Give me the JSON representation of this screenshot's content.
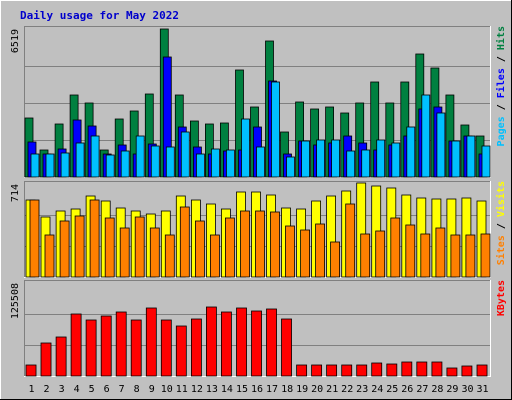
{
  "chart_data": {
    "type": "bar",
    "title": "Daily usage for May 2022",
    "categories": [
      "1",
      "2",
      "3",
      "4",
      "5",
      "6",
      "7",
      "8",
      "9",
      "10",
      "11",
      "12",
      "13",
      "14",
      "15",
      "16",
      "17",
      "18",
      "19",
      "20",
      "21",
      "22",
      "23",
      "24",
      "25",
      "26",
      "27",
      "28",
      "29",
      "30",
      "31"
    ],
    "weekend_days": [
      "1",
      "7",
      "8",
      "14",
      "15",
      "21",
      "22",
      "28",
      "29"
    ],
    "colors": {
      "background": "#c0c0c0",
      "hits": "#008040",
      "files": "#0000ff",
      "pages": "#00c0ff",
      "visits": "#ffff00",
      "sites": "#ff8000",
      "kbytes": "#ff0000",
      "title": "#0000cc",
      "weekday_label": "#000000",
      "weekend_label": "#008040",
      "grid": "#808080"
    },
    "panels": [
      {
        "id": "hits-files-pages",
        "max_label": "6519",
        "ymax": 6519,
        "side_label": [
          {
            "text": "Pages",
            "color": "#00c0ff"
          },
          {
            "text": " / ",
            "color": "#000000"
          },
          {
            "text": "Files",
            "color": "#0000ff"
          },
          {
            "text": " / ",
            "color": "#000000"
          },
          {
            "text": "Hits",
            "color": "#008040"
          }
        ],
        "series": [
          {
            "name": "Hits",
            "color": "#008040",
            "values": [
              2600,
              1200,
              2350,
              3600,
              3250,
              1200,
              2550,
              2900,
              3650,
              6500,
              3600,
              2450,
              2350,
              2400,
              4700,
              3100,
              6000,
              2000,
              3300,
              3000,
              3100,
              2800,
              3250,
              4200,
              3250,
              4200,
              5400,
              4800,
              3600,
              2300,
              1800
            ]
          },
          {
            "name": "Files",
            "color": "#0000ff",
            "values": [
              1550,
              1000,
              1250,
              2500,
              2250,
              1000,
              1400,
              1000,
              1450,
              5300,
              2200,
              1300,
              1000,
              1150,
              1200,
              2200,
              4250,
              1000,
              1600,
              1400,
              1500,
              1800,
              1500,
              1200,
              1400,
              1800,
              3000,
              3100,
              1600,
              1800,
              1000
            ]
          },
          {
            "name": "Pages",
            "color": "#00c0ff",
            "values": [
              1000,
              1000,
              1050,
              1500,
              1800,
              950,
              1150,
              1800,
              1350,
              1300,
              2000,
              1000,
              1250,
              1200,
              2550,
              1300,
              4200,
              900,
              1600,
              1650,
              1650,
              1150,
              1200,
              1650,
              1500,
              2200,
              3600,
              2800,
              1600,
              1800,
              1350
            ]
          }
        ]
      },
      {
        "id": "visits-sites",
        "max_label": "714",
        "ymax": 714,
        "side_label": [
          {
            "text": "Sites",
            "color": "#ff8000"
          },
          {
            "text": " / ",
            "color": "#000000"
          },
          {
            "text": "Visits",
            "color": "#ffff00"
          }
        ],
        "series": [
          {
            "name": "Visits",
            "color": "#ffff00",
            "values": [
              590,
              460,
              510,
              520,
              620,
              580,
              530,
              510,
              480,
              510,
              620,
              590,
              560,
              520,
              650,
              650,
              630,
              530,
              520,
              580,
              620,
              660,
              720,
              700,
              680,
              630,
              610,
              600,
              600,
              610,
              580
            ]
          },
          {
            "name": "Sites",
            "color": "#ff8000",
            "values": [
              590,
              320,
              430,
              470,
              590,
              450,
              380,
              460,
              380,
              320,
              540,
              430,
              320,
              450,
              510,
              510,
              500,
              390,
              360,
              410,
              270,
              560,
              330,
              350,
              450,
              400,
              330,
              380,
              320,
              320,
              330
            ]
          }
        ]
      },
      {
        "id": "kbytes",
        "max_label": "125508",
        "ymax": 125508,
        "side_label": [
          {
            "text": "KBytes",
            "color": "#ff0000"
          }
        ],
        "series": [
          {
            "name": "KBytes",
            "color": "#ff0000",
            "values": [
              14500,
              45000,
              53000,
              83000,
              75000,
              81000,
              86000,
              75000,
              92000,
              76000,
              68000,
              77000,
              93000,
              86000,
              92000,
              88000,
              91000,
              77000,
              14500,
              14500,
              14500,
              14500,
              14500,
              18000,
              16000,
              19000,
              19000,
              19000,
              11000,
              13500,
              14500
            ]
          }
        ]
      }
    ]
  }
}
